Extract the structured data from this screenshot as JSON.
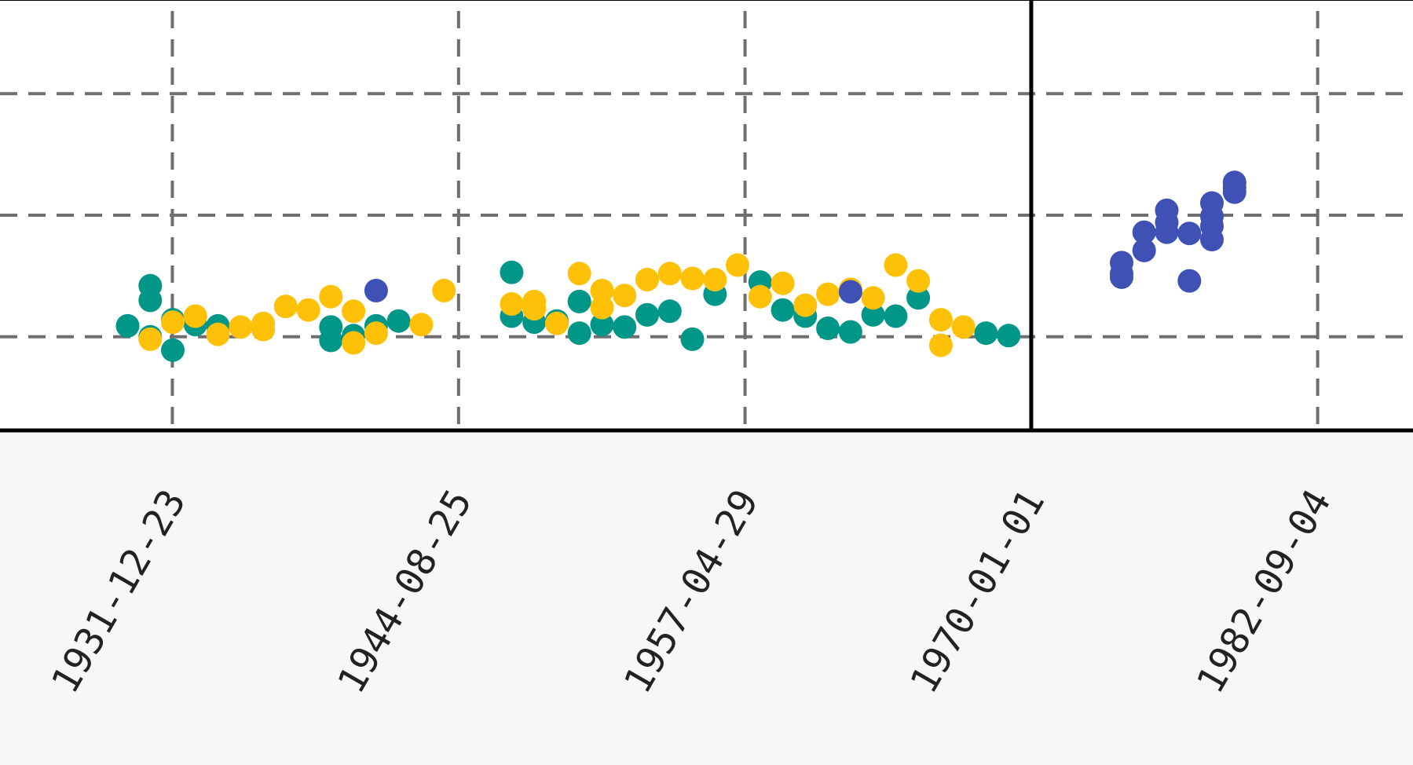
{
  "chart_data": {
    "type": "scatter",
    "title": "",
    "xlabel": "",
    "ylabel": "",
    "x_ticks": [
      "1931-12-23",
      "1944-08-25",
      "1957-04-29",
      "1970-01-01",
      "1982-09-04"
    ],
    "x_tick_years": [
      1931.98,
      1944.65,
      1957.33,
      1970.0,
      1982.68
    ],
    "xlim": [
      1924.35,
      1986.9
    ],
    "ylim": [
      -0.77,
      2.77
    ],
    "y_gridlines": [
      0,
      1,
      2
    ],
    "y_tick_labels_visible": false,
    "grid": true,
    "grid_style": "dashed",
    "vertical_reference_line_x": "1970-01-01",
    "series": [
      {
        "color": "#009688",
        "points": [
          [
            1930.0,
            0.09
          ],
          [
            1931.0,
            0.42
          ],
          [
            1931.0,
            0.3
          ],
          [
            1931.0,
            0.0
          ],
          [
            1932.0,
            0.14
          ],
          [
            1932.0,
            -0.11
          ],
          [
            1933.0,
            0.1
          ],
          [
            1934.0,
            0.09
          ],
          [
            1939.0,
            0.08
          ],
          [
            1939.0,
            -0.03
          ],
          [
            1940.0,
            0.01
          ],
          [
            1941.0,
            0.09
          ],
          [
            1942.0,
            0.13
          ],
          [
            1947.0,
            0.53
          ],
          [
            1947.0,
            0.17
          ],
          [
            1948.0,
            0.12
          ],
          [
            1949.0,
            0.13
          ],
          [
            1950.0,
            0.29
          ],
          [
            1950.0,
            0.03
          ],
          [
            1951.0,
            0.1
          ],
          [
            1952.0,
            0.08
          ],
          [
            1953.0,
            0.18
          ],
          [
            1954.0,
            0.21
          ],
          [
            1955.0,
            -0.02
          ],
          [
            1956.0,
            0.35
          ],
          [
            1958.0,
            0.45
          ],
          [
            1959.0,
            0.22
          ],
          [
            1960.0,
            0.17
          ],
          [
            1961.0,
            0.07
          ],
          [
            1962.0,
            0.04
          ],
          [
            1963.0,
            0.18
          ],
          [
            1964.0,
            0.17
          ],
          [
            1965.0,
            0.32
          ],
          [
            1968.0,
            0.03
          ],
          [
            1969.0,
            0.01
          ]
        ]
      },
      {
        "color": "#ffc107",
        "points": [
          [
            1931.0,
            -0.02
          ],
          [
            1932.0,
            0.12
          ],
          [
            1933.0,
            0.17
          ],
          [
            1934.0,
            0.02
          ],
          [
            1935.0,
            0.08
          ],
          [
            1936.0,
            0.11
          ],
          [
            1936.0,
            0.06
          ],
          [
            1937.0,
            0.25
          ],
          [
            1938.0,
            0.22
          ],
          [
            1939.0,
            0.33
          ],
          [
            1940.0,
            0.21
          ],
          [
            1940.0,
            -0.05
          ],
          [
            1941.0,
            0.03
          ],
          [
            1943.0,
            0.1
          ],
          [
            1944.0,
            0.38
          ],
          [
            1947.0,
            0.27
          ],
          [
            1948.0,
            0.29
          ],
          [
            1948.0,
            0.23
          ],
          [
            1949.0,
            0.11
          ],
          [
            1950.0,
            0.52
          ],
          [
            1951.0,
            0.38
          ],
          [
            1951.0,
            0.24
          ],
          [
            1952.0,
            0.34
          ],
          [
            1953.0,
            0.47
          ],
          [
            1954.0,
            0.52
          ],
          [
            1955.0,
            0.48
          ],
          [
            1956.0,
            0.47
          ],
          [
            1957.0,
            0.59
          ],
          [
            1958.0,
            0.33
          ],
          [
            1959.0,
            0.44
          ],
          [
            1960.0,
            0.26
          ],
          [
            1961.0,
            0.35
          ],
          [
            1962.0,
            0.39
          ],
          [
            1963.0,
            0.32
          ],
          [
            1964.0,
            0.59
          ],
          [
            1965.0,
            0.46
          ],
          [
            1966.0,
            0.14
          ],
          [
            1966.0,
            -0.07
          ],
          [
            1967.0,
            0.08
          ]
        ]
      },
      {
        "color": "#3f51b5",
        "points": [
          [
            1941.0,
            0.38
          ],
          [
            1962.0,
            0.37
          ],
          [
            1974.0,
            0.61
          ],
          [
            1974.0,
            0.49
          ],
          [
            1974.0,
            0.52
          ],
          [
            1975.0,
            0.71
          ],
          [
            1975.0,
            0.86
          ],
          [
            1976.0,
            0.86
          ],
          [
            1976.0,
            0.94
          ],
          [
            1976.0,
            1.04
          ],
          [
            1977.0,
            0.85
          ],
          [
            1977.0,
            0.46
          ],
          [
            1978.0,
            1.1
          ],
          [
            1978.0,
            0.99
          ],
          [
            1978.0,
            0.91
          ],
          [
            1978.0,
            0.8
          ],
          [
            1979.0,
            1.23
          ],
          [
            1979.0,
            1.19
          ],
          [
            1979.0,
            1.27
          ]
        ]
      }
    ]
  }
}
